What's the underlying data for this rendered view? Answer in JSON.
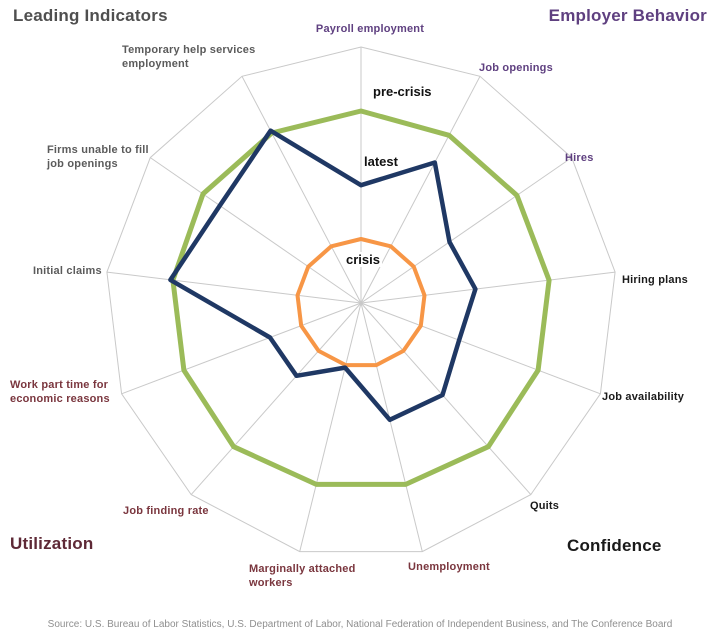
{
  "titles": {
    "top_left": "Leading Indicators",
    "top_right": "Employer Behavior",
    "bottom_left": "Utilization",
    "bottom_right": "Confidence"
  },
  "source_note": "Source: U.S. Bureau of Labor Statistics, U.S. Department of Labor, National Federation of Independent Business, and The Conference Board",
  "chart_data": {
    "type": "radar",
    "center": [
      361,
      303
    ],
    "radius": 256,
    "scale": {
      "min": 0,
      "max": 1,
      "note": "values normalized: 1.0 = outer grid ring"
    },
    "grid": {
      "rings": 1,
      "spokes": 13,
      "color": "#C9C9C9"
    },
    "group_colors": {
      "leading": "#5B5B5B",
      "employer": "#5F4080",
      "confidence": "#1A1A1A",
      "utilization": "#7A363E"
    },
    "title_colors": {
      "top_left": "#4F4F4F",
      "top_right": "#5F4080",
      "bottom_left": "#5E2936",
      "bottom_right": "#1A1A1A"
    },
    "axes": [
      {
        "label": "Payroll employment",
        "group": "employer"
      },
      {
        "label": "Job openings",
        "group": "employer"
      },
      {
        "label": "Hires",
        "group": "employer"
      },
      {
        "label": "Hiring plans",
        "group": "confidence"
      },
      {
        "label": "Job availability",
        "group": "confidence"
      },
      {
        "label": "Quits",
        "group": "confidence"
      },
      {
        "label": "Unemployment",
        "group": "utilization"
      },
      {
        "label": "Marginally attached workers",
        "group": "utilization"
      },
      {
        "label": "Job finding rate",
        "group": "utilization"
      },
      {
        "label": "Work part time for economic reasons",
        "group": "utilization"
      },
      {
        "label": "Initial claims",
        "group": "leading"
      },
      {
        "label": "Firms unable to fill job openings",
        "group": "leading"
      },
      {
        "label": "Temporary help services employment",
        "group": "leading"
      }
    ],
    "series": [
      {
        "name": "pre-crisis",
        "color": "#9BBB59",
        "stroke_width": 5,
        "values": [
          0.75,
          0.74,
          0.74,
          0.74,
          0.74,
          0.75,
          0.73,
          0.73,
          0.75,
          0.74,
          0.74,
          0.75,
          0.75
        ]
      },
      {
        "name": "crisis",
        "color": "#F79646",
        "stroke_width": 4,
        "values": [
          0.25,
          0.25,
          0.25,
          0.25,
          0.25,
          0.25,
          0.25,
          0.25,
          0.25,
          0.25,
          0.25,
          0.25,
          0.25
        ]
      },
      {
        "name": "latest",
        "color": "#1F3864",
        "stroke_width": 4.5,
        "values": [
          0.46,
          0.62,
          0.42,
          0.45,
          0.41,
          0.48,
          0.47,
          0.26,
          0.38,
          0.38,
          0.75,
          0.67,
          0.76
        ]
      }
    ]
  }
}
